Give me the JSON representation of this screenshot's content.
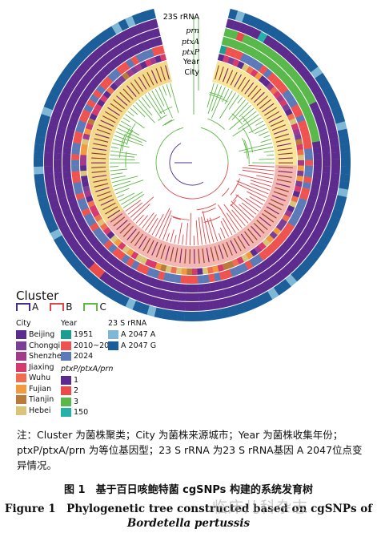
{
  "ring_labels": [
    "23S rRNA",
    "prn",
    "ptxA",
    "ptxP",
    "Year",
    "City"
  ],
  "colors": {
    "city": [
      "#5b2c8f",
      "#7c3f98",
      "#a23b8c",
      "#d83a6e",
      "#f06e4f",
      "#f39a3f",
      "#ba7a3c",
      "#d9c47a"
    ],
    "year": [
      "#1a9e8f",
      "#ef5350",
      "#5c7ab8"
    ],
    "ptx": [
      "#5d2a8e",
      "#ea4a4a",
      "#58b84a",
      "#24b2a8"
    ],
    "rrna": [
      "#7fb8d6",
      "#1b5e9a"
    ],
    "clusterA": "#4a2d86",
    "clusterB": "#e0464a",
    "clusterC": "#5fb847"
  },
  "legend": {
    "cluster_title": "Cluster",
    "clusters": [
      {
        "label": "A",
        "color": "#4a2d86"
      },
      {
        "label": "B",
        "color": "#e0464a"
      },
      {
        "label": "C",
        "color": "#5fb847"
      }
    ],
    "city_title": "City",
    "cities": [
      "Beijing",
      "Chongqing",
      "Shenzhen",
      "Jiaxing",
      "Wuhu",
      "Fujian",
      "Tianjin",
      "Hebei"
    ],
    "year_title": "Year",
    "years": [
      "1951",
      "2010~2023",
      "2024"
    ],
    "rrna_title": "23 S rRNA",
    "rrna": [
      "A 2047 A",
      "A 2047 G"
    ],
    "ptx_title": "ptxP/ptxA/prn",
    "ptx": [
      "1",
      "2",
      "3",
      "150"
    ]
  },
  "note": "注：Cluster 为菌株聚类；City 为菌株来源城市；Year 为菌株收集年份；ptxP/ptxA/prn 为等位基因型；23 S rRNA 为23 S rRNA基因 A 2047位点变异情况。",
  "caption_cn": "图 1　基于百日咳鲍特菌 cgSNPs 构建的系统发育树",
  "caption_en": "Figure 1　Phylogenetic tree constructed based on cgSNPs of",
  "caption_en_species": "Bordetella pertussis",
  "watermark": "临床儿科杂志"
}
